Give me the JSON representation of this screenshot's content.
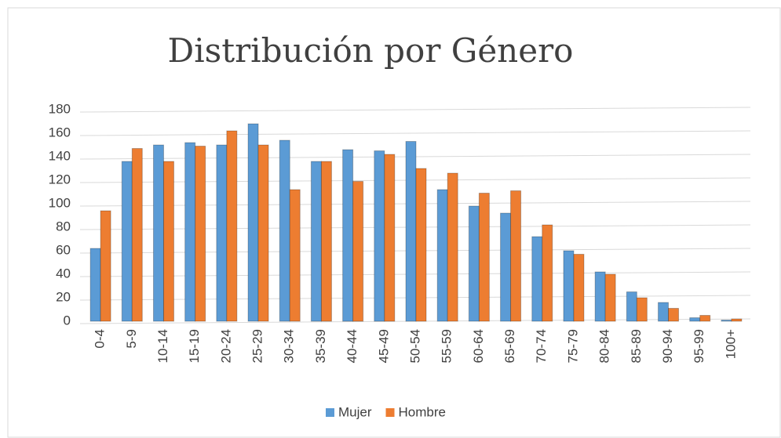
{
  "chart_data": {
    "type": "bar",
    "title": "Distribución por Género",
    "categories": [
      "0-4",
      "5-9",
      "10-14",
      "15-19",
      "20-24",
      "25-29",
      "30-34",
      "35-39",
      "40-44",
      "45-49",
      "50-54",
      "55-59",
      "60-64",
      "65-69",
      "70-74",
      "75-79",
      "80-84",
      "85-89",
      "90-94",
      "95-99",
      "100+"
    ],
    "series": [
      {
        "name": "Mujer",
        "color": "#5b9bd5",
        "values": [
          62,
          136,
          150,
          152,
          150,
          168,
          154,
          136,
          146,
          145,
          153,
          112,
          98,
          92,
          72,
          60,
          42,
          25,
          16,
          3,
          1
        ]
      },
      {
        "name": "Hombre",
        "color": "#ed7d31",
        "values": [
          94,
          147,
          136,
          149,
          162,
          150,
          112,
          136,
          119,
          142,
          130,
          126,
          109,
          111,
          82,
          57,
          40,
          20,
          11,
          5,
          2
        ]
      }
    ],
    "ylim": [
      0,
      180
    ],
    "yticks": [
      0,
      20,
      40,
      60,
      80,
      100,
      120,
      140,
      160,
      180
    ],
    "grid": true,
    "legend": "bottom"
  }
}
